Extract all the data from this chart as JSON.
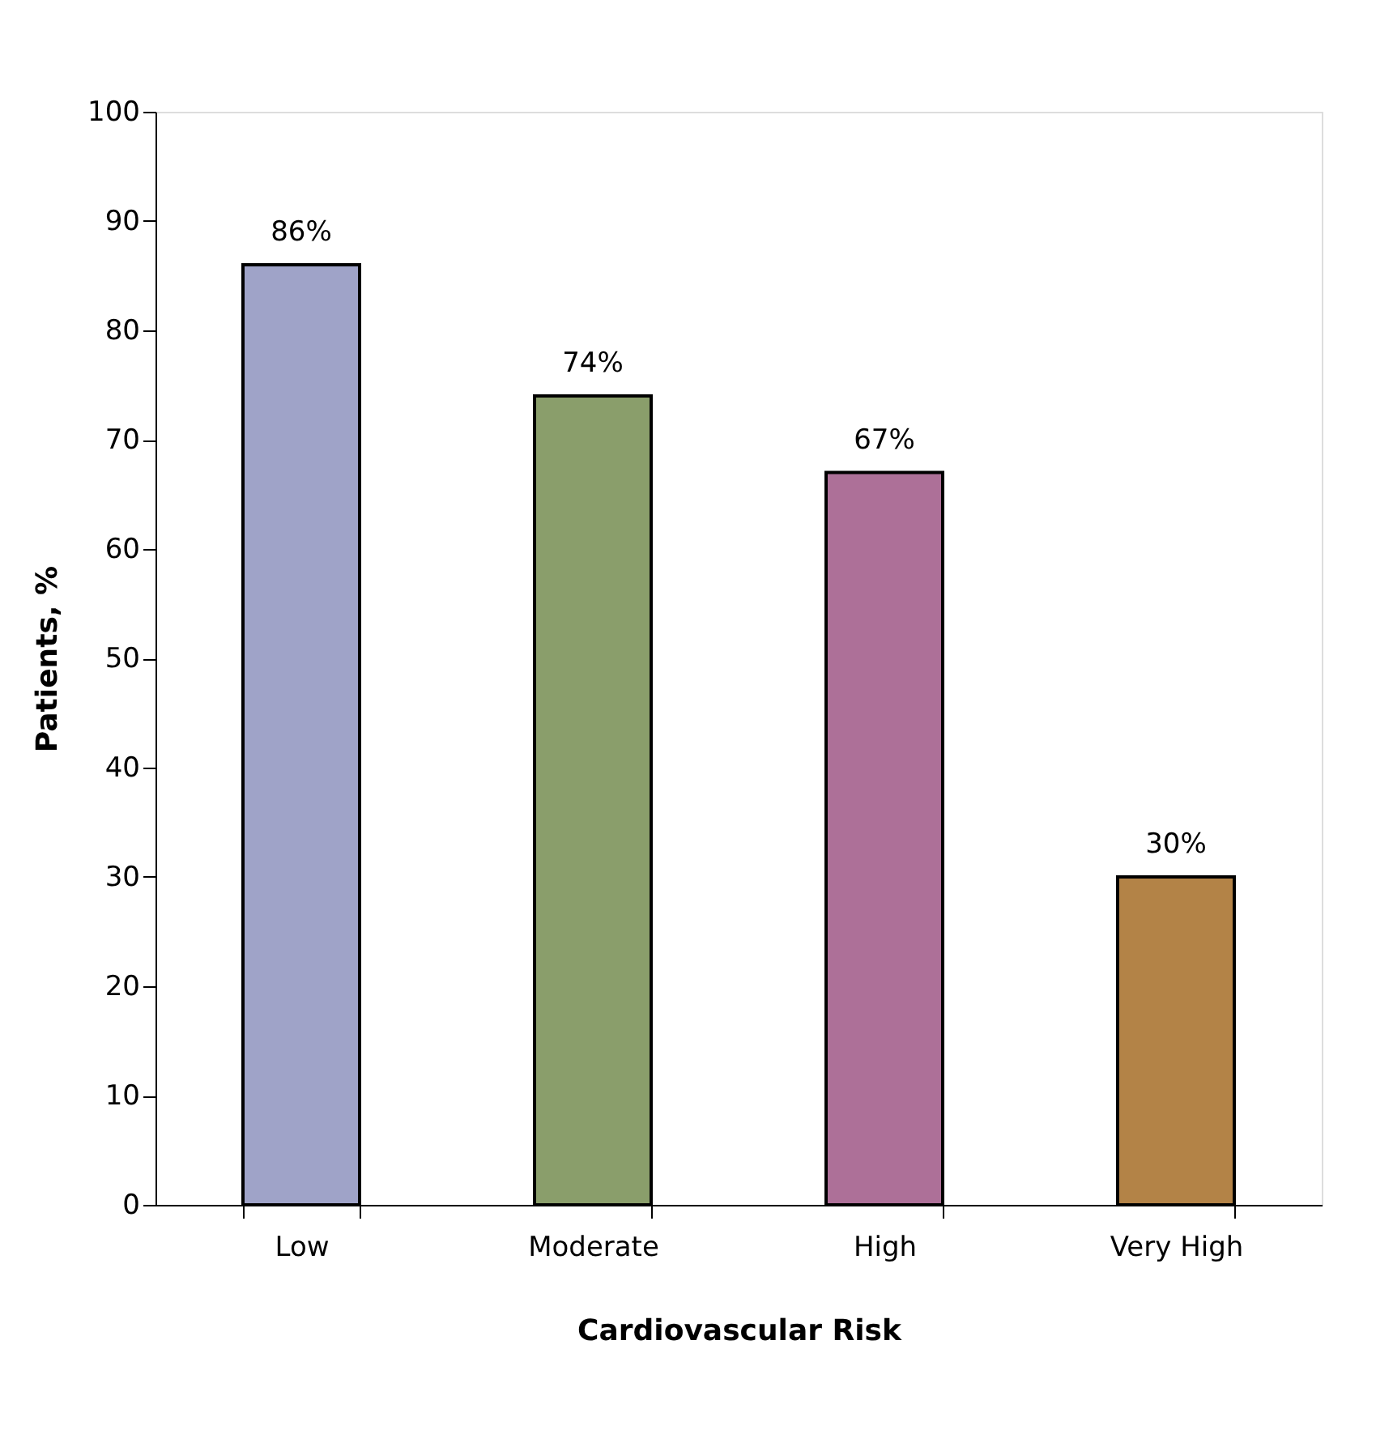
{
  "chart_data": {
    "type": "bar",
    "xlabel": "Cardiovascular Risk",
    "ylabel": "Patients, %",
    "categories": [
      "Low",
      "Moderate",
      "High",
      "Very High"
    ],
    "values": [
      86,
      74,
      67,
      30
    ],
    "value_labels": [
      "86%",
      "74%",
      "67%",
      "30%"
    ],
    "colors": [
      "#9fa3c8",
      "#8a9e6b",
      "#ad7098",
      "#b38347"
    ],
    "ylim": [
      0,
      100
    ],
    "yticks": [
      0,
      10,
      20,
      30,
      40,
      50,
      60,
      70,
      80,
      90,
      100
    ],
    "grid": false
  }
}
